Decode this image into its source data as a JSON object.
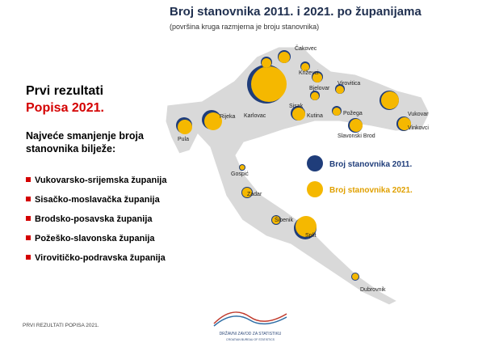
{
  "header": {
    "title": "Broj stanovnika 2011. i 2021. po županijama",
    "subtitle": "(površina kruga razmjerna je broju stanovnika)"
  },
  "sidebar": {
    "heading_1": "Prvi rezultati",
    "heading_2": "Popisa 2021.",
    "intro": [
      "Najveće smanjenje broja",
      "stanovnika bilježe:"
    ],
    "items": [
      "Vukovarsko-srijemska županija",
      "Sisačko-moslavačka županija",
      "Brodsko-posavska županija",
      "Požeško-slavonska županija",
      "Virovitičko-podravska županija"
    ]
  },
  "legend": [
    "Broj stanovnika 2011.",
    "Broj stanovnika 2021."
  ],
  "map_labels": [
    "Čakovec",
    "Križevci",
    "Bjelovar",
    "Virovitica",
    "Karlovac",
    "Sisak",
    "Kutina",
    "Požega",
    "Slavonski Brod",
    "Vukovar",
    "Vinkovci",
    "Pula",
    "Rijeka",
    "Gospić",
    "Zadar",
    "Šibenik",
    "Split",
    "Dubrovnik"
  ],
  "footer": {
    "note": "PRVI REZULTATI POPISA 2021.",
    "org": "DRŽAVNI ZAVOD ZA STATISTIKU",
    "org_en": "CROATIAN BUREAU OF STATISTICS"
  }
}
